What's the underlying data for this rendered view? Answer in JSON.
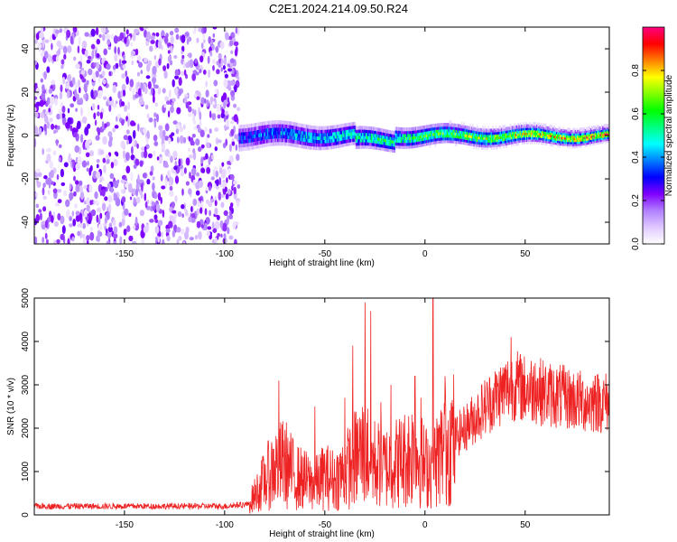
{
  "title": "C2E1.2024.214.09.50.R24",
  "chart_data": [
    {
      "type": "heatmap",
      "xlabel": "Height of straight line (km)",
      "ylabel": "Frequency (Hz)",
      "xlim": [
        -195,
        92
      ],
      "ylim": [
        -50,
        50
      ],
      "xticks": [
        -150,
        -100,
        -50,
        0,
        50
      ],
      "yticks": [
        -40,
        -20,
        0,
        20,
        40
      ],
      "colorbar": {
        "label": "Normalized spectral amplitude",
        "range": [
          0,
          1
        ],
        "ticks": [
          0.0,
          0.2,
          0.4,
          0.6,
          0.8
        ],
        "tick_labels": [
          "0.0",
          "0.2",
          "0.4",
          "0.6",
          "0.8"
        ],
        "colormap": [
          "#ffffff",
          "#e0c8ff",
          "#b080ff",
          "#8000ff",
          "#0000ff",
          "#0080ff",
          "#00ffff",
          "#00ff80",
          "#00ff00",
          "#80ff00",
          "#ffff00",
          "#ff8000",
          "#ff0000",
          "#ff0080"
        ]
      },
      "regions": [
        {
          "name": "noise",
          "x_range": [
            -195,
            -93
          ],
          "freq_range": [
            -50,
            50
          ],
          "amplitude": 0.2
        },
        {
          "name": "signal",
          "x_range": [
            -93,
            92
          ],
          "center_freq": 0,
          "amplitude_start": 0.4,
          "amplitude_end": 0.95
        }
      ]
    },
    {
      "type": "line",
      "xlabel": "Height of straight line (km)",
      "ylabel": "SNR (10 * v/v)",
      "xlim": [
        -195,
        92
      ],
      "ylim": [
        0,
        5000
      ],
      "xticks": [
        -150,
        -100,
        -50,
        0,
        50
      ],
      "yticks": [
        0,
        1000,
        2000,
        3000,
        4000,
        5000
      ],
      "color": "#ee2222",
      "series_profile": {
        "x": [
          -195,
          -150,
          -100,
          -88,
          -80,
          -75,
          -70,
          -65,
          -60,
          -55,
          -50,
          -45,
          -40,
          -35,
          -30,
          -25,
          -20,
          -15,
          -10,
          -5,
          0,
          5,
          10,
          20,
          30,
          40,
          45,
          50,
          55,
          60,
          70,
          80,
          92
        ],
        "y": [
          200,
          200,
          200,
          250,
          800,
          1100,
          1200,
          900,
          800,
          700,
          900,
          800,
          1000,
          1300,
          1500,
          1200,
          1100,
          1200,
          1300,
          1500,
          1100,
          1200,
          1600,
          2000,
          2500,
          2900,
          3000,
          2900,
          2900,
          2800,
          2700,
          2600,
          2600
        ],
        "spikes": [
          [
            -73,
            3100
          ],
          [
            -55,
            2500
          ],
          [
            -40,
            2700
          ],
          [
            -36,
            3900
          ],
          [
            -30,
            4900
          ],
          [
            -27,
            4700
          ],
          [
            -22,
            2600
          ],
          [
            -17,
            3000
          ],
          [
            -5,
            3200
          ],
          [
            -2,
            2700
          ],
          [
            4,
            5000
          ],
          [
            10,
            3200
          ],
          [
            43,
            4100
          ],
          [
            48,
            3600
          ],
          [
            55,
            3500
          ],
          [
            85,
            3200
          ]
        ]
      }
    }
  ]
}
